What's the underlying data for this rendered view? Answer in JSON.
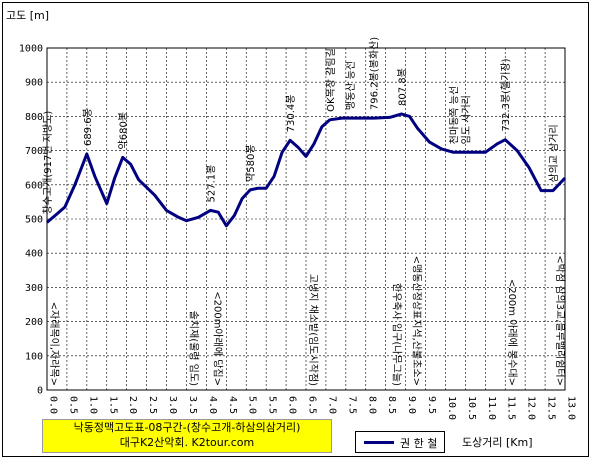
{
  "chart_data": {
    "type": "line",
    "ylabel": "고도 [m]",
    "xlabel": "도상거리 [Km]",
    "ylim": [
      0,
      1000
    ],
    "xlim": [
      0,
      13
    ],
    "yticks": [
      "0",
      "100",
      "200",
      "300",
      "400",
      "500",
      "600",
      "700",
      "800",
      "900",
      "1000"
    ],
    "xticks": [
      "0.0",
      "0.5",
      "1.0",
      "1.5",
      "2.0",
      "2.5",
      "3.0",
      "3.5",
      "4.0",
      "4.5",
      "5.0",
      "5.5",
      "6.0",
      "6.5",
      "7.0",
      "7.5",
      "8.0",
      "8.5",
      "9.0",
      "9.5",
      "10.0",
      "10.5",
      "11.0",
      "11.5",
      "12.0",
      "12.5",
      "13.0"
    ],
    "grid": true,
    "series": [
      {
        "name": "권 한 철",
        "color": "#000080",
        "x": [
          0.0,
          0.2,
          0.45,
          0.7,
          1.0,
          1.2,
          1.5,
          1.7,
          1.9,
          2.1,
          2.3,
          2.7,
          3.0,
          3.3,
          3.5,
          3.8,
          4.1,
          4.3,
          4.5,
          4.7,
          4.9,
          5.1,
          5.3,
          5.5,
          5.7,
          5.9,
          6.1,
          6.3,
          6.5,
          6.7,
          6.9,
          7.1,
          7.4,
          7.8,
          8.2,
          8.6,
          8.9,
          9.1,
          9.3,
          9.6,
          9.9,
          10.2,
          10.5,
          11.0,
          11.3,
          11.5,
          11.8,
          12.1,
          12.4,
          12.7,
          13.0
        ],
        "y": [
          490,
          510,
          535,
          600,
          690,
          625,
          545,
          620,
          680,
          660,
          615,
          570,
          525,
          505,
          495,
          505,
          525,
          520,
          480,
          510,
          560,
          585,
          590,
          590,
          625,
          695,
          730,
          710,
          683,
          720,
          770,
          790,
          795,
          795,
          795,
          797,
          807,
          800,
          765,
          725,
          705,
          695,
          695,
          695,
          720,
          732,
          700,
          650,
          583,
          583,
          620
        ]
      }
    ],
    "annotations": [
      {
        "x": 0.0,
        "text": "<자래목이,자라목>",
        "pos": "below"
      },
      {
        "x": 0.0,
        "text": "창수고개(917번 지방도)",
        "pos": "above"
      },
      {
        "x": 1.0,
        "text": "689.6봉",
        "pos": "above"
      },
      {
        "x": 1.9,
        "text": "약680봉",
        "pos": "above"
      },
      {
        "x": 3.5,
        "text": "솔치재(울령 임도)",
        "pos": "below"
      },
      {
        "x": 4.1,
        "text": "527.1봉",
        "pos": "above"
      },
      {
        "x": 4.1,
        "text": "<200m아래에 당집>",
        "pos": "below"
      },
      {
        "x": 5.1,
        "text": "약580봉",
        "pos": "above"
      },
      {
        "x": 6.1,
        "text": "730.4봉",
        "pos": "above"
      },
      {
        "x": 6.5,
        "text": "고냉지 채소밭(임도시작점)",
        "pos": "below"
      },
      {
        "x": 7.1,
        "text": "OK목장 갈림길",
        "pos": "above"
      },
      {
        "x": 7.6,
        "text": "맹동산 능선",
        "pos": "above"
      },
      {
        "x": 8.2,
        "text": "796.2봉(봉화산)",
        "pos": "above"
      },
      {
        "x": 8.6,
        "text": "한우축사 입구(나무그늘)",
        "pos": "below"
      },
      {
        "x": 8.9,
        "text": "807.8봉",
        "pos": "above"
      },
      {
        "x": 9.1,
        "text": "<맹동산정상표지석,산불초소>",
        "pos": "below"
      },
      {
        "x": 10.2,
        "text": "천마동쪽 능선",
        "pos": "above"
      },
      {
        "x": 10.5,
        "text": "임도 사거리",
        "pos": "above"
      },
      {
        "x": 11.5,
        "text": "732.3봉(헬기장)",
        "pos": "above"
      },
      {
        "x": 11.5,
        "text": "<200m 아래에 봉수대>",
        "pos": "below"
      },
      {
        "x": 12.7,
        "text": "삼의교 삼거리",
        "pos": "above"
      },
      {
        "x": 12.7,
        "text": "<박점 삼의3교,블루밸리쉼터>",
        "pos": "below"
      }
    ]
  },
  "title_box": {
    "line1": "낙동정맥고도표-08구간-(창수고개-하삼의삼거리)",
    "line2": "대구K2산악회. K2tour.com"
  },
  "legend": {
    "label": "권 한 철"
  }
}
